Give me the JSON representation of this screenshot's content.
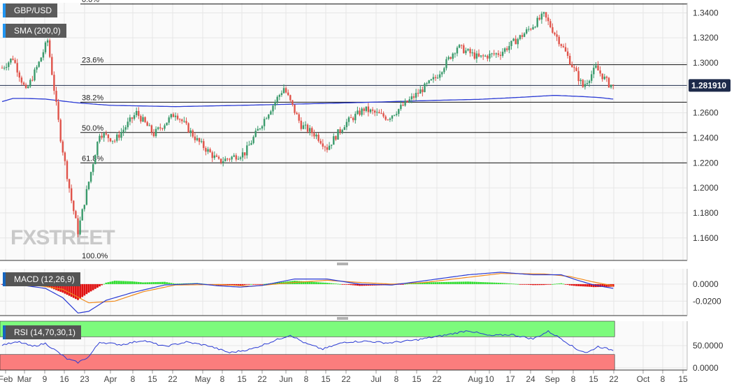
{
  "labels": {
    "symbol": "GBP/USD",
    "sma": "SMA (200,0)",
    "macd": "MACD (12,26,9)",
    "rsi": "RSI (14,70,30,1)",
    "watermark": "FXSTREET"
  },
  "colors": {
    "up": "#3a9a6b",
    "down": "#e0534a",
    "sma": "#2a3ad4",
    "macd_line": "#2a3ad4",
    "signal_line": "#f08a1c",
    "hist_pos": "#33dd33",
    "hist_neg": "#e01010",
    "rsi_line": "#2a3ad4",
    "rsi_overbought_band": "#7dfb7d",
    "rsi_oversold_band": "#fb7d7d",
    "grid": "#e6e6e6",
    "price_badge": "#1d2a4a"
  },
  "chart_data": [
    {
      "type": "candlestick",
      "title": "GBP/USD",
      "series_name": "SMA (200,0)",
      "ylim": [
        1.142,
        1.348
      ],
      "y_ticks": [
        "1.3400",
        "1.3200",
        "1.3000",
        "1.2800",
        "1.2600",
        "1.2400",
        "1.2200",
        "1.2000",
        "1.1800",
        "1.1600"
      ],
      "y_tick_values": [
        1.34,
        1.32,
        1.3,
        1.28,
        1.26,
        1.24,
        1.22,
        1.2,
        1.18,
        1.16
      ],
      "x_tick_labels": [
        "Feb",
        "Mar",
        "9",
        "16",
        "23",
        "Apr",
        "8",
        "15",
        "22",
        "May",
        "8",
        "15",
        "22",
        "Jun",
        "8",
        "15",
        "22",
        "Jul",
        "8",
        "15",
        "22",
        "Aug",
        "10",
        "17",
        "24",
        "Sep",
        "8",
        "15",
        "22",
        "Oct",
        "8",
        "15"
      ],
      "current_price": "1.281910",
      "current_price_value": 1.28191,
      "fibonacci": [
        {
          "label": "0.0%",
          "value": 1.347
        },
        {
          "label": "23.6%",
          "value": 1.2985
        },
        {
          "label": "38.2%",
          "value": 1.2685
        },
        {
          "label": "50.0%",
          "value": 1.2443
        },
        {
          "label": "61.8%",
          "value": 1.22
        },
        {
          "label": "100.0%",
          "value": 1.141
        }
      ],
      "anchors": [
        [
          0,
          1.296
        ],
        [
          5,
          1.304
        ],
        [
          11,
          1.277
        ],
        [
          17,
          1.3
        ],
        [
          21,
          1.318
        ],
        [
          27,
          1.24
        ],
        [
          32,
          1.19
        ],
        [
          35,
          1.165
        ],
        [
          40,
          1.205
        ],
        [
          45,
          1.244
        ],
        [
          52,
          1.238
        ],
        [
          62,
          1.26
        ],
        [
          70,
          1.243
        ],
        [
          80,
          1.26
        ],
        [
          90,
          1.238
        ],
        [
          100,
          1.221
        ],
        [
          112,
          1.228
        ],
        [
          122,
          1.258
        ],
        [
          130,
          1.28
        ],
        [
          138,
          1.25
        ],
        [
          145,
          1.242
        ],
        [
          150,
          1.232
        ],
        [
          158,
          1.251
        ],
        [
          167,
          1.263
        ],
        [
          178,
          1.256
        ],
        [
          188,
          1.27
        ],
        [
          200,
          1.288
        ],
        [
          210,
          1.313
        ],
        [
          220,
          1.304
        ],
        [
          230,
          1.308
        ],
        [
          240,
          1.322
        ],
        [
          250,
          1.338
        ],
        [
          258,
          1.315
        ],
        [
          263,
          1.298
        ],
        [
          268,
          1.281
        ],
        [
          274,
          1.296
        ],
        [
          280,
          1.283
        ],
        [
          282,
          1.2819
        ]
      ],
      "sma_anchors": [
        [
          0,
          1.269
        ],
        [
          5,
          1.2715
        ],
        [
          11,
          1.2715
        ],
        [
          20,
          1.271
        ],
        [
          25,
          1.27
        ],
        [
          35,
          1.268
        ],
        [
          50,
          1.266
        ],
        [
          80,
          1.265
        ],
        [
          110,
          1.266
        ],
        [
          140,
          1.2672
        ],
        [
          160,
          1.268
        ],
        [
          180,
          1.269
        ],
        [
          200,
          1.27
        ],
        [
          220,
          1.2708
        ],
        [
          240,
          1.2725
        ],
        [
          255,
          1.274
        ],
        [
          268,
          1.273
        ],
        [
          276,
          1.2722
        ],
        [
          282,
          1.271
        ]
      ]
    },
    {
      "type": "macd",
      "title": "MACD (12,26,9)",
      "ylim": [
        -0.037,
        0.018
      ],
      "y_ticks": [
        "0.0000",
        "-0.0200"
      ],
      "y_tick_values": [
        0.0,
        -0.02
      ],
      "macd_anchors": [
        [
          0,
          -0.0005
        ],
        [
          10,
          -0.0015
        ],
        [
          20,
          -0.005
        ],
        [
          28,
          -0.016
        ],
        [
          35,
          -0.034
        ],
        [
          40,
          -0.032
        ],
        [
          48,
          -0.019
        ],
        [
          60,
          -0.01
        ],
        [
          75,
          -0.001
        ],
        [
          90,
          0.0005
        ],
        [
          100,
          -0.002
        ],
        [
          110,
          -0.0035
        ],
        [
          120,
          -0.0015
        ],
        [
          135,
          0.006
        ],
        [
          150,
          0.006
        ],
        [
          165,
          0.0
        ],
        [
          180,
          -0.001
        ],
        [
          195,
          0.004
        ],
        [
          215,
          0.011
        ],
        [
          230,
          0.014
        ],
        [
          245,
          0.011
        ],
        [
          258,
          0.011
        ],
        [
          265,
          0.005
        ],
        [
          273,
          -0.001
        ],
        [
          282,
          -0.005
        ]
      ],
      "signal_anchors": [
        [
          0,
          -0.0002
        ],
        [
          15,
          -0.001
        ],
        [
          28,
          -0.006
        ],
        [
          40,
          -0.022
        ],
        [
          52,
          -0.02
        ],
        [
          65,
          -0.009
        ],
        [
          80,
          -0.001
        ],
        [
          100,
          -0.0005
        ],
        [
          115,
          -0.0025
        ],
        [
          135,
          0.002
        ],
        [
          150,
          0.0045
        ],
        [
          165,
          0.002
        ],
        [
          180,
          0.0
        ],
        [
          195,
          0.002
        ],
        [
          215,
          0.008
        ],
        [
          230,
          0.0125
        ],
        [
          250,
          0.012
        ],
        [
          262,
          0.009
        ],
        [
          272,
          0.003
        ],
        [
          282,
          -0.002
        ]
      ]
    },
    {
      "type": "rsi",
      "title": "RSI (14,70,30,1)",
      "ylim": [
        -5,
        105
      ],
      "y_ticks": [
        "50.0000",
        "0.0000"
      ],
      "y_tick_values": [
        50,
        0
      ],
      "overbought": 70,
      "oversold": 30,
      "rsi_anchors": [
        [
          0,
          52
        ],
        [
          8,
          58
        ],
        [
          14,
          48
        ],
        [
          20,
          55
        ],
        [
          25,
          38
        ],
        [
          30,
          20
        ],
        [
          35,
          12
        ],
        [
          40,
          25
        ],
        [
          45,
          58
        ],
        [
          55,
          52
        ],
        [
          65,
          62
        ],
        [
          75,
          48
        ],
        [
          85,
          58
        ],
        [
          95,
          50
        ],
        [
          105,
          34
        ],
        [
          115,
          42
        ],
        [
          125,
          60
        ],
        [
          133,
          74
        ],
        [
          140,
          55
        ],
        [
          148,
          42
        ],
        [
          158,
          58
        ],
        [
          168,
          60
        ],
        [
          178,
          56
        ],
        [
          190,
          62
        ],
        [
          205,
          74
        ],
        [
          215,
          84
        ],
        [
          225,
          72
        ],
        [
          235,
          75
        ],
        [
          245,
          65
        ],
        [
          252,
          82
        ],
        [
          258,
          66
        ],
        [
          265,
          42
        ],
        [
          270,
          34
        ],
        [
          275,
          48
        ],
        [
          280,
          42
        ],
        [
          282,
          40
        ]
      ]
    }
  ]
}
